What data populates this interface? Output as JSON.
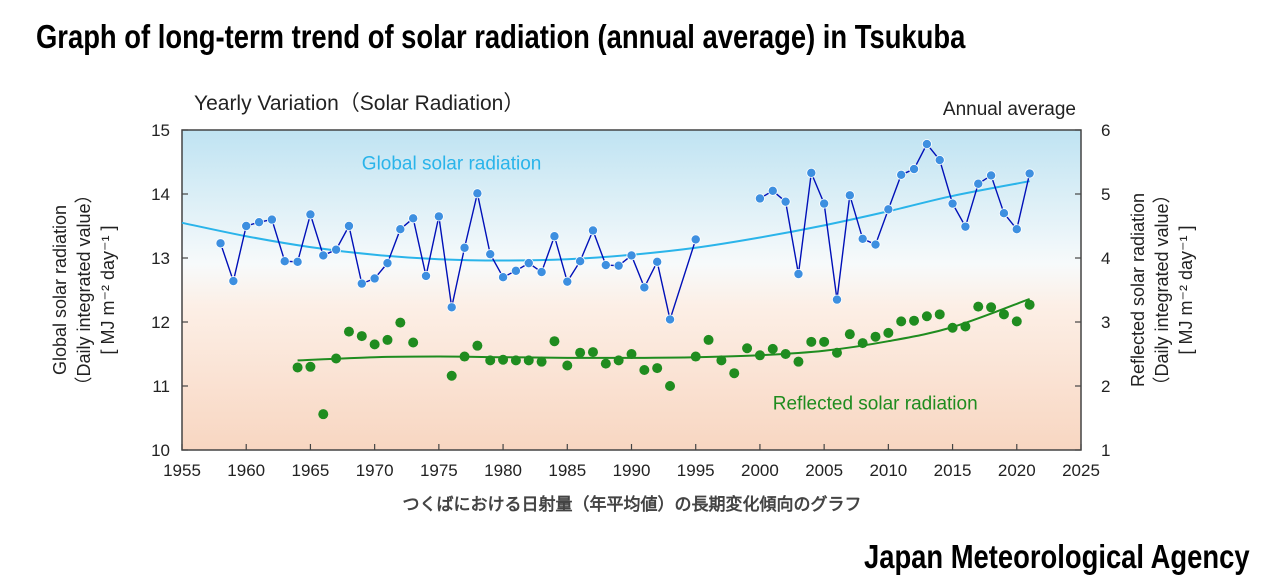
{
  "page": {
    "title": "Graph of long-term trend of solar radiation (annual average) in Tsukuba",
    "footer": "Japan Meteorological Agency"
  },
  "chart_data": {
    "type": "line",
    "title": "Yearly Variation（Solar Radiation）",
    "subtitle": "Annual average",
    "xlabel": "つくばにおける日射量（年平均値）の長期変化傾向のグラフ",
    "ylabel_left": [
      "Global solar radiation",
      "（Daily integrated value）",
      "[ MJ m⁻² day⁻¹ ]"
    ],
    "ylabel_right": [
      "Reflected solar radiation",
      "（Daily integrated value）",
      "[ MJ m⁻² day⁻¹ ]"
    ],
    "xlim": [
      1955,
      2025
    ],
    "ylim_left": [
      10,
      15
    ],
    "ylim_right": [
      1,
      6
    ],
    "x_ticks": [
      1955,
      1960,
      1965,
      1970,
      1975,
      1980,
      1985,
      1990,
      1995,
      2000,
      2005,
      2010,
      2015,
      2020,
      2025
    ],
    "y_ticks_left": [
      10,
      11,
      12,
      13,
      14,
      15
    ],
    "y_ticks_right": [
      1,
      2,
      3,
      4,
      5,
      6
    ],
    "colors": {
      "global_line": "#0010b8",
      "global_point": "#3d8fe0",
      "global_trend": "#2ab4ea",
      "reflected_point": "#1f8c1f",
      "reflected_trend": "#1f8c1f"
    },
    "series": [
      {
        "name": "Global solar radiation",
        "axis": "left",
        "segments": [
          {
            "x": [
              1958,
              1959,
              1960,
              1961,
              1962,
              1963,
              1964,
              1965,
              1966,
              1967,
              1968,
              1969,
              1970,
              1971,
              1972,
              1973,
              1974,
              1975,
              1976,
              1977,
              1978,
              1979,
              1980,
              1981,
              1982,
              1983,
              1984,
              1985,
              1986,
              1987,
              1988,
              1989,
              1990,
              1991,
              1992,
              1993,
              1995
            ],
            "y": [
              13.23,
              12.64,
              13.5,
              13.56,
              13.6,
              12.95,
              12.94,
              13.68,
              13.04,
              13.13,
              13.5,
              12.6,
              12.68,
              12.92,
              13.45,
              13.62,
              12.72,
              13.65,
              12.23,
              13.16,
              14.01,
              13.06,
              12.7,
              12.8,
              12.92,
              12.78,
              13.34,
              12.63,
              12.95,
              13.43,
              12.89,
              12.88,
              13.04,
              12.54,
              12.94,
              12.04,
              13.29
            ]
          },
          {
            "x": [
              2000,
              2001,
              2002,
              2003,
              2004,
              2005,
              2006,
              2007,
              2008,
              2009,
              2010,
              2011,
              2012,
              2013,
              2014,
              2015,
              2016,
              2017,
              2018,
              2019,
              2020,
              2021
            ],
            "y": [
              13.93,
              14.05,
              13.88,
              12.75,
              14.33,
              13.85,
              12.35,
              13.98,
              13.3,
              13.21,
              13.76,
              14.3,
              14.39,
              14.78,
              14.53,
              13.85,
              13.49,
              14.16,
              14.29,
              13.7,
              13.45,
              14.32
            ]
          }
        ]
      },
      {
        "name": "Reflected solar radiation",
        "axis": "right",
        "x": [
          1964,
          1965,
          1966,
          1967,
          1968,
          1969,
          1970,
          1971,
          1972,
          1973,
          1976,
          1977,
          1978,
          1979,
          1980,
          1981,
          1982,
          1983,
          1984,
          1985,
          1986,
          1987,
          1988,
          1989,
          1990,
          1991,
          1992,
          1993,
          1995,
          1996,
          1997,
          1998,
          1999,
          2000,
          2001,
          2002,
          2003,
          2004,
          2005,
          2006,
          2007,
          2008,
          2009,
          2010,
          2011,
          2012,
          2013,
          2014,
          2015,
          2016,
          2017,
          2018,
          2019,
          2020,
          2021
        ],
        "y": [
          2.29,
          2.3,
          1.56,
          2.43,
          2.85,
          2.78,
          2.65,
          2.72,
          2.99,
          2.68,
          2.16,
          2.46,
          2.63,
          2.4,
          2.41,
          2.4,
          2.4,
          2.38,
          2.7,
          2.32,
          2.52,
          2.53,
          2.35,
          2.4,
          2.5,
          2.25,
          2.28,
          2.0,
          2.46,
          2.72,
          2.4,
          2.2,
          2.59,
          2.48,
          2.58,
          2.5,
          2.38,
          2.69,
          2.69,
          2.52,
          2.81,
          2.67,
          2.77,
          2.83,
          3.01,
          3.02,
          3.09,
          3.12,
          2.91,
          2.93,
          3.24,
          3.23,
          3.12,
          3.01,
          3.27
        ]
      },
      {
        "name": "Global solar radiation trend",
        "axis": "left",
        "x": [
          1955,
          1960,
          1965,
          1970,
          1975,
          1980,
          1985,
          1990,
          1995,
          2000,
          2005,
          2010,
          2015,
          2021
        ],
        "y": [
          13.55,
          13.34,
          13.17,
          13.05,
          12.98,
          12.96,
          12.98,
          13.05,
          13.16,
          13.32,
          13.51,
          13.73,
          13.97,
          14.2
        ]
      },
      {
        "name": "Reflected solar radiation trend",
        "axis": "right",
        "x": [
          1964,
          1970,
          1975,
          1980,
          1985,
          1990,
          1995,
          2000,
          2005,
          2010,
          2015,
          2021
        ],
        "y": [
          2.4,
          2.45,
          2.46,
          2.45,
          2.44,
          2.44,
          2.45,
          2.48,
          2.55,
          2.7,
          2.92,
          3.36
        ]
      }
    ],
    "annotations": [
      {
        "text": "Global solar radiation",
        "x": 1969,
        "y": 14.38,
        "axis": "left",
        "color": "#2ab4ea"
      },
      {
        "text": "Reflected solar radiation",
        "x": 2001,
        "y": 1.63,
        "axis": "right",
        "color": "#1f8c1f"
      }
    ]
  }
}
